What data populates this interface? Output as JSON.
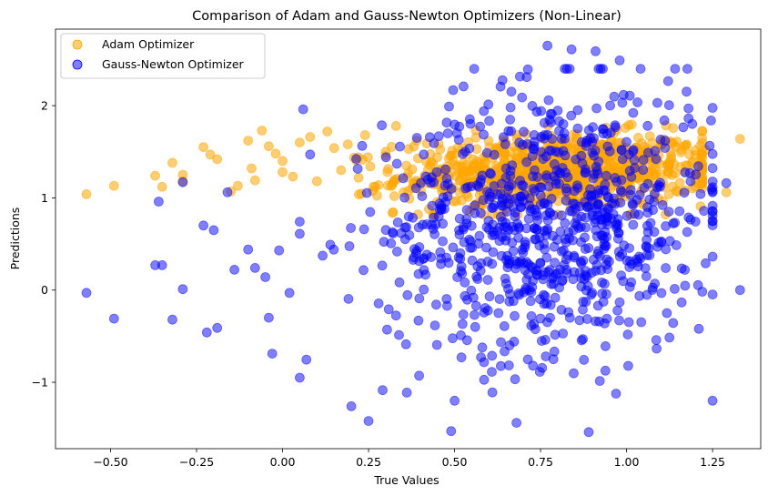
{
  "chart_data": {
    "type": "scatter",
    "title": "Comparison of Adam and Gauss-Newton Optimizers (Non-Linear)",
    "xlabel": "True Values",
    "ylabel": "Predictions",
    "xlim": [
      -0.66,
      1.39
    ],
    "ylim": [
      -1.72,
      2.83
    ],
    "xticks": [
      -0.5,
      -0.25,
      0.0,
      0.25,
      0.5,
      0.75,
      1.0,
      1.25
    ],
    "xtick_labels": [
      "−0.50",
      "−0.25",
      "0.00",
      "0.25",
      "0.50",
      "0.75",
      "1.00",
      "1.25"
    ],
    "yticks": [
      -1,
      0,
      1,
      2
    ],
    "ytick_labels": [
      "−1",
      "0",
      "1",
      "2"
    ],
    "grid": false,
    "legend_position": "top-left",
    "series": [
      {
        "name": "Adam Optimizer",
        "color": "#FFA500",
        "opacity": 0.55,
        "n_points": 900,
        "points": [
          [
            -0.57,
            1.04
          ],
          [
            -0.49,
            1.13
          ],
          [
            -0.37,
            1.24
          ],
          [
            -0.35,
            1.12
          ],
          [
            -0.32,
            1.38
          ],
          [
            -0.29,
            1.25
          ],
          [
            -0.29,
            1.18
          ],
          [
            -0.23,
            1.55
          ],
          [
            -0.21,
            1.47
          ],
          [
            -0.19,
            1.42
          ],
          [
            -0.15,
            1.07
          ],
          [
            -0.13,
            1.13
          ],
          [
            -0.1,
            1.62
          ],
          [
            -0.09,
            1.32
          ],
          [
            -0.08,
            1.19
          ],
          [
            -0.06,
            1.73
          ],
          [
            -0.04,
            1.56
          ],
          [
            -0.02,
            1.48
          ],
          [
            0.0,
            1.4
          ],
          [
            0.03,
            1.23
          ],
          [
            0.05,
            1.6
          ],
          [
            0.08,
            1.66
          ],
          [
            0.1,
            1.18
          ],
          [
            0.13,
            1.72
          ],
          [
            0.15,
            1.54
          ],
          [
            0.17,
            1.3
          ],
          [
            0.19,
            1.58
          ],
          [
            0.22,
            1.44
          ],
          [
            0.24,
            1.68
          ],
          [
            0.27,
            1.12
          ],
          [
            0.3,
            1.5
          ],
          [
            0.33,
            1.78
          ],
          [
            0.36,
            1.35
          ],
          [
            0.39,
            1.62
          ],
          [
            0.42,
            1.16
          ],
          [
            0.45,
            1.44
          ],
          [
            1.2,
            1.26
          ],
          [
            1.23,
            1.52
          ],
          [
            1.29,
            1.06
          ],
          [
            1.33,
            1.64
          ],
          [
            1.17,
            1.08
          ],
          [
            1.1,
            1.58
          ],
          [
            1.06,
            1.21
          ],
          [
            1.13,
            1.42
          ]
        ]
      },
      {
        "name": "Gauss-Newton Optimizer",
        "color": "#0000FF",
        "opacity": 0.5,
        "n_points": 900,
        "points": [
          [
            -0.57,
            -0.03
          ],
          [
            -0.49,
            -0.31
          ],
          [
            -0.37,
            0.27
          ],
          [
            -0.36,
            0.96
          ],
          [
            -0.35,
            0.27
          ],
          [
            -0.32,
            -0.32
          ],
          [
            -0.29,
            0.01
          ],
          [
            -0.29,
            1.17
          ],
          [
            -0.23,
            0.7
          ],
          [
            -0.22,
            -0.46
          ],
          [
            -0.2,
            0.65
          ],
          [
            -0.19,
            -0.41
          ],
          [
            -0.16,
            1.06
          ],
          [
            -0.14,
            0.22
          ],
          [
            -0.1,
            0.44
          ],
          [
            -0.08,
            0.24
          ],
          [
            -0.05,
            0.14
          ],
          [
            -0.04,
            -0.3
          ],
          [
            -0.03,
            -0.69
          ],
          [
            -0.01,
            0.43
          ],
          [
            0.02,
            -0.03
          ],
          [
            0.05,
            0.61
          ],
          [
            0.06,
            1.96
          ],
          [
            0.08,
            1.47
          ],
          [
            0.2,
            -1.26
          ],
          [
            0.25,
            -1.42
          ],
          [
            0.49,
            -1.53
          ],
          [
            0.68,
            -1.44
          ],
          [
            0.89,
            -1.54
          ],
          [
            0.71,
            2.31
          ],
          [
            0.77,
            2.65
          ],
          [
            0.84,
            2.61
          ],
          [
            0.91,
            2.59
          ],
          [
            0.98,
            2.49
          ],
          [
            1.11,
            1.84
          ],
          [
            1.18,
            1.97
          ],
          [
            1.21,
            -0.42
          ],
          [
            1.33,
            0.0
          ],
          [
            1.29,
            1.16
          ],
          [
            1.23,
            0.29
          ],
          [
            0.52,
            -0.73
          ],
          [
            0.56,
            -0.4
          ],
          [
            0.61,
            -1.11
          ],
          [
            0.66,
            -0.6
          ]
        ]
      }
    ]
  }
}
